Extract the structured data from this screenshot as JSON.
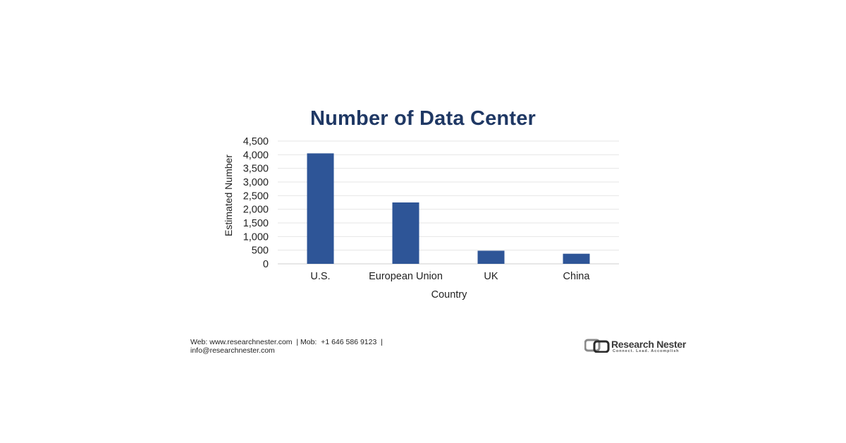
{
  "chart_data": {
    "type": "bar",
    "title": "Number of Data Center",
    "xlabel": "Country",
    "ylabel": "Estimated Number",
    "categories": [
      "U.S.",
      "European Union",
      "UK",
      "China"
    ],
    "values": [
      4050,
      2250,
      480,
      370
    ],
    "ylim": [
      0,
      4500
    ],
    "yticks": [
      "0",
      "500",
      "1,000",
      "1,500",
      "2,000",
      "2,500",
      "3,000",
      "3,500",
      "4,000",
      "4,500"
    ],
    "grid": true,
    "bar_color": "#2e5597"
  },
  "footer": {
    "web": "Web: www.researchnester.com  | Mob:  +1 646 586 9123  |",
    "email": "info@researchnester.com"
  },
  "logo": {
    "name": "Research Nester",
    "tagline": "Connect. Lead. Accomplish"
  }
}
